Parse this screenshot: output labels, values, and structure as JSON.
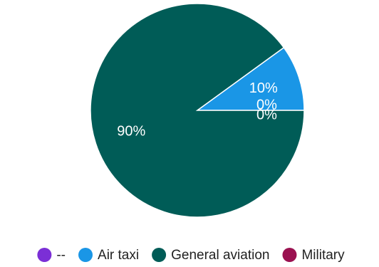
{
  "chart_data": {
    "type": "pie",
    "categories": [
      "--",
      "Air taxi",
      "General aviation",
      "Military"
    ],
    "values": [
      0,
      10,
      90,
      0
    ],
    "value_labels": [
      "0%",
      "10%",
      "90%",
      "0%"
    ],
    "colors": [
      "#7b2fd6",
      "#1a96e6",
      "#005c57",
      "#9a1150"
    ],
    "legend": "bottom"
  }
}
